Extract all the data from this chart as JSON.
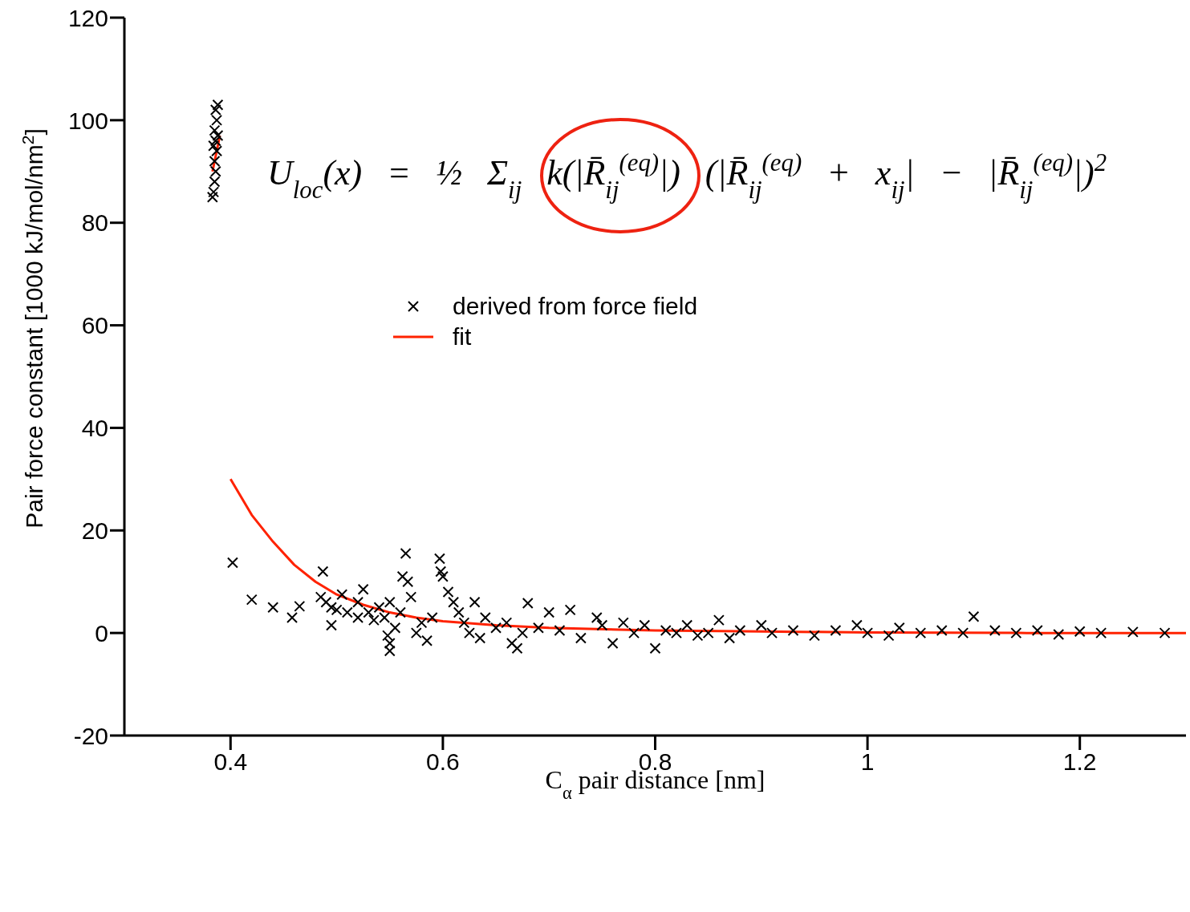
{
  "chart_data": {
    "type": "scatter",
    "xlabel": "C$_{α}$ pair distance [nm]",
    "ylabel": "Pair force constant [1000 kJ/mol/nm$^{2}$]",
    "annotations": [
      "U$_{loc}$(x) = ½ Σ$_{ij}$ k(|R̄$_{ij}$$^{(eq)}$|) (|R̄$_{ij}$$^{(eq)}$ + x$_{ij}$| − |R̄$_{ij}$$^{(eq)}$|)$^{2}$"
    ],
    "xlim": [
      0.3,
      1.3
    ],
    "xticks": [
      0.4,
      0.6,
      0.8,
      1,
      1.2
    ],
    "ylim": [
      -20,
      120
    ],
    "yticks": [
      -20,
      0,
      20,
      40,
      60,
      80,
      100,
      120
    ],
    "grid": false,
    "legend": "top",
    "marker": "cross",
    "series": [
      {
        "name": "derived from force field",
        "color": "#000000",
        "x": [
          0.383,
          0.384,
          0.385,
          0.386,
          0.385,
          0.387,
          0.384,
          0.386,
          0.388,
          0.385,
          0.387,
          0.386,
          0.388,
          0.402,
          0.42,
          0.44,
          0.458,
          0.465,
          0.487,
          0.485,
          0.49,
          0.495,
          0.5,
          0.505,
          0.51,
          0.495,
          0.52,
          0.525,
          0.52,
          0.53,
          0.535,
          0.54,
          0.545,
          0.55,
          0.548,
          0.55,
          0.55,
          0.555,
          0.56,
          0.562,
          0.565,
          0.567,
          0.57,
          0.575,
          0.58,
          0.585,
          0.59,
          0.597,
          0.598,
          0.6,
          0.605,
          0.61,
          0.615,
          0.62,
          0.625,
          0.63,
          0.635,
          0.64,
          0.65,
          0.66,
          0.665,
          0.67,
          0.675,
          0.68,
          0.69,
          0.7,
          0.71,
          0.72,
          0.73,
          0.745,
          0.75,
          0.76,
          0.77,
          0.78,
          0.79,
          0.8,
          0.81,
          0.82,
          0.83,
          0.84,
          0.85,
          0.86,
          0.87,
          0.88,
          0.9,
          0.91,
          0.93,
          0.95,
          0.97,
          0.99,
          1.0,
          1.02,
          1.03,
          1.05,
          1.07,
          1.09,
          1.1,
          1.12,
          1.14,
          1.16,
          1.18,
          1.2,
          1.22,
          1.25,
          1.28
        ],
        "values": [
          85,
          86,
          88,
          90,
          92,
          94,
          95,
          96,
          97,
          98,
          100,
          102,
          103,
          13.7,
          6.5,
          5,
          3,
          5.2,
          12,
          7,
          6,
          5,
          4.5,
          7.5,
          4,
          1.5,
          6,
          8.5,
          3,
          4,
          2.5,
          5,
          3,
          6,
          -0.5,
          -2,
          -3.5,
          1,
          4,
          11,
          15.5,
          10,
          7,
          0,
          2,
          -1.5,
          3,
          14.5,
          12,
          11,
          8,
          6,
          4,
          2,
          0,
          6,
          -1,
          3,
          1,
          2,
          -2,
          -3,
          0,
          5.8,
          1,
          4,
          0.5,
          4.5,
          -1,
          3,
          1.5,
          -2,
          2,
          0,
          1.5,
          -3,
          0.5,
          0,
          1.5,
          -0.5,
          0,
          2.5,
          -1,
          0.5,
          1.5,
          0,
          0.5,
          -0.5,
          0.5,
          1.5,
          0,
          -0.5,
          1,
          0,
          0.5,
          0,
          3.2,
          0.5,
          0,
          0.5,
          -0.3,
          0.3,
          0,
          0.2,
          0
        ]
      },
      {
        "name": "fit",
        "type": "line",
        "marker": "none",
        "color": "#ff2200",
        "line_style": "solid",
        "x": [
          0.4,
          0.42,
          0.44,
          0.46,
          0.48,
          0.5,
          0.525,
          0.55,
          0.575,
          0.6,
          0.65,
          0.7,
          0.8,
          0.9,
          1.0,
          1.15,
          1.3
        ],
        "values": [
          30,
          23,
          17.8,
          13.3,
          10,
          7.5,
          5.5,
          4,
          3,
          2.3,
          1.5,
          1,
          0.5,
          0.3,
          0.1,
          0,
          0
        ]
      },
      {
        "type": "line",
        "marker": "none",
        "color": "#ff2200",
        "line_style": "solid",
        "x": [
          0.383,
          0.39
        ],
        "values": [
          90,
          97
        ]
      }
    ]
  }
}
